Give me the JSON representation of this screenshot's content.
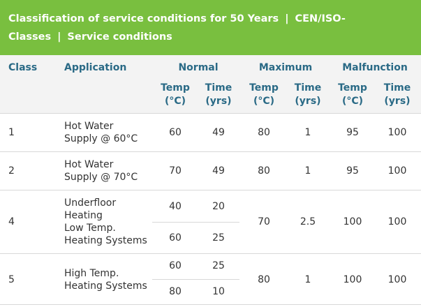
{
  "banner": {
    "part1": "Classification of service conditions for 50 Years",
    "sep1": "|",
    "part2": "CEN/ISO-Classes",
    "sep2": "|",
    "part3": "Service conditions"
  },
  "headers": {
    "class": "Class",
    "application": "Application",
    "normal": "Normal",
    "maximum": "Maximum",
    "malfunction": "Malfunction",
    "temp_line1": "Temp",
    "temp_line2": "(°C)",
    "time_line1": "Time",
    "time_line2": "(yrs)"
  },
  "rows": [
    {
      "class": "1",
      "application": [
        "Hot Water",
        "Supply @ 60°C"
      ],
      "normal": [
        {
          "temp": "60",
          "time": "49"
        }
      ],
      "max_temp": "80",
      "max_time": "1",
      "mal_temp": "95",
      "mal_time": "100"
    },
    {
      "class": "2",
      "application": [
        "Hot Water",
        "Supply @ 70°C"
      ],
      "normal": [
        {
          "temp": "70",
          "time": "49"
        }
      ],
      "max_temp": "80",
      "max_time": "1",
      "mal_temp": "95",
      "mal_time": "100"
    },
    {
      "class": "4",
      "application": [
        "Underfloor",
        "Heating",
        "Low Temp.",
        "Heating Systems"
      ],
      "normal": [
        {
          "temp": "40",
          "time": "20"
        },
        {
          "temp": "60",
          "time": "25"
        }
      ],
      "max_temp": "70",
      "max_time": "2.5",
      "mal_temp": "100",
      "mal_time": "100"
    },
    {
      "class": "5",
      "application": [
        "High Temp.",
        "Heating Systems"
      ],
      "normal": [
        {
          "temp": "60",
          "time": "25"
        },
        {
          "temp": "80",
          "time": "10"
        }
      ],
      "max_temp": "80",
      "max_time": "1",
      "mal_temp": "100",
      "mal_time": "100"
    }
  ]
}
